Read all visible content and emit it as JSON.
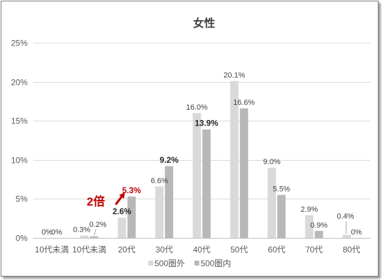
{
  "chart_data": {
    "type": "bar",
    "title": "女性",
    "categories": [
      "10代未満",
      "10代未満",
      "20代",
      "30代",
      "40代",
      "50代",
      "60代",
      "70代",
      "80代"
    ],
    "series": [
      {
        "name": "500圏外",
        "color": "#d9d9d9",
        "values": [
          0,
          0.3,
          2.6,
          6.6,
          16.0,
          20.1,
          9.0,
          2.9,
          0.4
        ],
        "labels": [
          "0%",
          "0.3%",
          "2.6%",
          "6.6%",
          "16.0%",
          "20.1%",
          "9.0%",
          "2.9%",
          "0.4%"
        ]
      },
      {
        "name": "500圏内",
        "color": "#b8b8b8",
        "values": [
          0,
          0.2,
          5.3,
          9.2,
          13.9,
          16.6,
          5.5,
          0.9,
          0
        ],
        "labels": [
          "0%",
          "0.2%",
          "5.3%",
          "9.2%",
          "13.9%",
          "16.6%",
          "5.5%",
          "0.9%",
          "0%"
        ]
      }
    ],
    "ylim": [
      0,
      25
    ],
    "yticks": [
      "0%",
      "5%",
      "10%",
      "15%",
      "20%",
      "25%"
    ],
    "grid": true,
    "legend": "bottom",
    "annotation": {
      "text": "2倍",
      "color": "#c00000"
    }
  }
}
